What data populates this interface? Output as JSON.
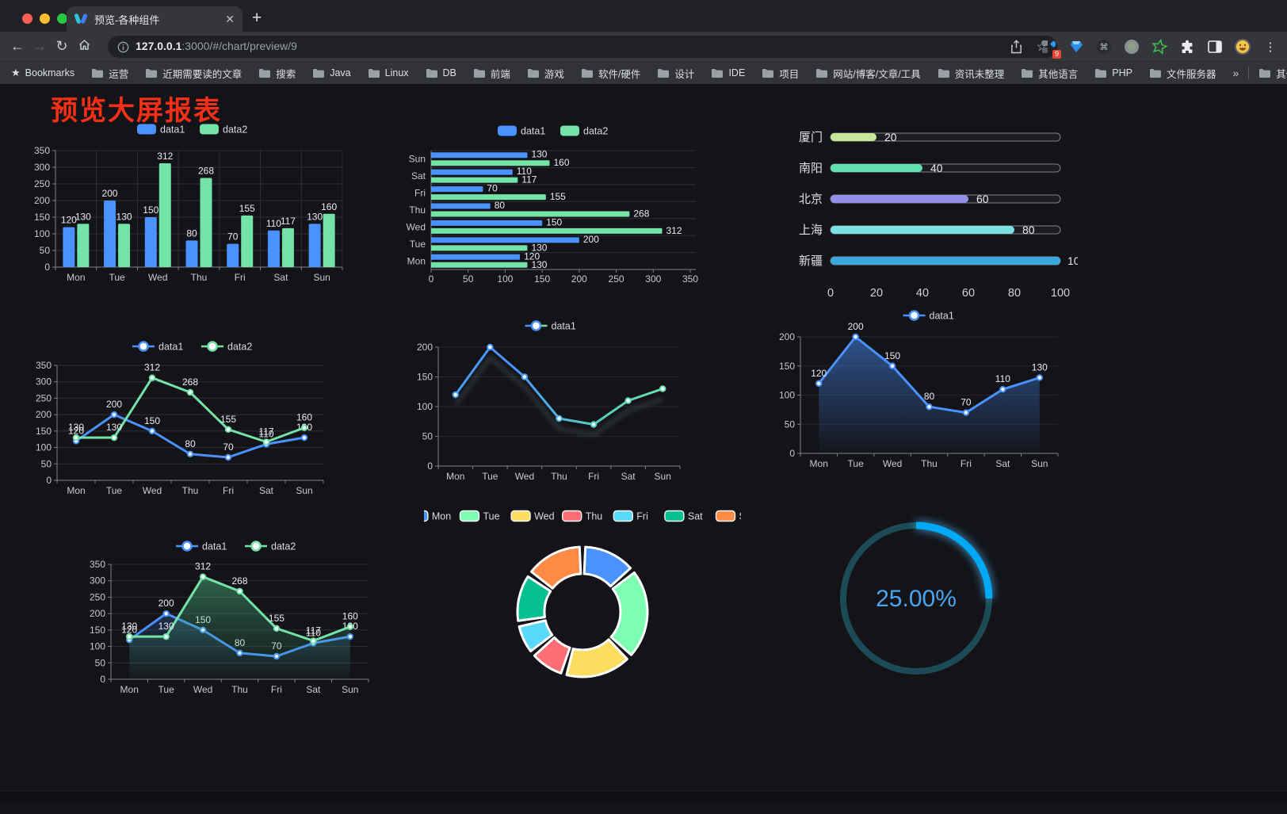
{
  "window": {
    "tab_title": "预览-各种组件",
    "close_glyph": "✕",
    "new_tab_glyph": "+",
    "back_glyph": "←",
    "forward_glyph": "→",
    "reload_glyph": "↻",
    "url_host": "127.0.0.1",
    "url_rest": ":3000/#/chart/preview/9",
    "star_glyph": "☆",
    "extension_badge": "9",
    "menu_glyph": "⋮"
  },
  "bookmarks": {
    "label": "Bookmarks",
    "star_glyph": "★",
    "items": [
      "运营",
      "近期需要读的文章",
      "搜索",
      "Java",
      "Linux",
      "DB",
      "前端",
      "游戏",
      "软件/硬件",
      "设计",
      "IDE",
      "项目",
      "网站/博客/文章/工具",
      "资讯未整理",
      "其他语言",
      "PHP",
      "文件服务器"
    ],
    "overflow_glyph": "»",
    "other_label": "其他书签"
  },
  "page": {
    "title": "预览大屏报表",
    "title_color": "#f23018"
  },
  "chart_data": [
    {
      "id": "bar-grouped",
      "type": "bar",
      "categories": [
        "Mon",
        "Tue",
        "Wed",
        "Thu",
        "Fri",
        "Sat",
        "Sun"
      ],
      "series": [
        {
          "name": "data1",
          "color": "#4992ff",
          "values": [
            120,
            200,
            150,
            80,
            70,
            110,
            130
          ]
        },
        {
          "name": "data2",
          "color": "#73e3a8",
          "values": [
            130,
            130,
            312,
            268,
            155,
            117,
            160
          ]
        }
      ],
      "ylim": [
        0,
        350
      ],
      "ytick": 50,
      "legend_position": "top",
      "grid": true
    },
    {
      "id": "bar-horizontal",
      "type": "bar",
      "orientation": "horizontal",
      "categories": [
        "Mon",
        "Tue",
        "Wed",
        "Thu",
        "Fri",
        "Sat",
        "Sun"
      ],
      "display_top_to_bottom": [
        "Sun",
        "Sat",
        "Fri",
        "Thu",
        "Wed",
        "Tue",
        "Mon"
      ],
      "series": [
        {
          "name": "data1",
          "color": "#4992ff",
          "values": [
            120,
            200,
            150,
            80,
            70,
            110,
            130
          ]
        },
        {
          "name": "data2",
          "color": "#73e3a8",
          "values": [
            130,
            130,
            312,
            268,
            155,
            117,
            160
          ]
        }
      ],
      "xlim": [
        0,
        350
      ],
      "xtick": 50
    },
    {
      "id": "progress-bars",
      "type": "bar",
      "orientation": "horizontal-progress",
      "xlim": [
        0,
        100
      ],
      "xticks": [
        0,
        20,
        40,
        60,
        80,
        100
      ],
      "items": [
        {
          "label": "厦门",
          "value": 20,
          "color": "#c6e89b"
        },
        {
          "label": "南阳",
          "value": 40,
          "color": "#5fe0ae"
        },
        {
          "label": "北京",
          "value": 60,
          "color": "#938fe8"
        },
        {
          "label": "上海",
          "value": 80,
          "color": "#7cdfe4"
        },
        {
          "label": "新疆",
          "value": 100,
          "color": "#38a8dd"
        }
      ]
    },
    {
      "id": "line-dual",
      "type": "line",
      "categories": [
        "Mon",
        "Tue",
        "Wed",
        "Thu",
        "Fri",
        "Sat",
        "Sun"
      ],
      "series": [
        {
          "name": "data1",
          "color": "#4992ff",
          "values": [
            120,
            200,
            150,
            80,
            70,
            110,
            130
          ]
        },
        {
          "name": "data2",
          "color": "#73e3a8",
          "values": [
            130,
            130,
            312,
            268,
            155,
            117,
            160
          ]
        }
      ],
      "ylim": [
        0,
        350
      ],
      "ytick": 50,
      "labels": true
    },
    {
      "id": "line-gradient",
      "type": "line",
      "categories": [
        "Mon",
        "Tue",
        "Wed",
        "Thu",
        "Fri",
        "Sat",
        "Sun"
      ],
      "series": [
        {
          "name": "data1",
          "gradient": [
            "#4992ff",
            "#73e3a8"
          ],
          "color": "#4992ff",
          "values": [
            120,
            200,
            150,
            80,
            70,
            110,
            130
          ]
        }
      ],
      "ylim": [
        0,
        200
      ],
      "ytick": 50,
      "labels": false
    },
    {
      "id": "line-area",
      "type": "area",
      "categories": [
        "Mon",
        "Tue",
        "Wed",
        "Thu",
        "Fri",
        "Sat",
        "Sun"
      ],
      "series": [
        {
          "name": "data1",
          "color": "#4992ff",
          "values": [
            120,
            200,
            150,
            80,
            70,
            110,
            130
          ]
        }
      ],
      "ylim": [
        0,
        200
      ],
      "ytick": 50,
      "labels": true
    },
    {
      "id": "line-area-dual",
      "type": "area",
      "categories": [
        "Mon",
        "Tue",
        "Wed",
        "Thu",
        "Fri",
        "Sat",
        "Sun"
      ],
      "series": [
        {
          "name": "data1",
          "color": "#4992ff",
          "values": [
            120,
            200,
            150,
            80,
            70,
            110,
            130
          ]
        },
        {
          "name": "data2",
          "color": "#73e3a8",
          "values": [
            130,
            130,
            312,
            268,
            155,
            117,
            160
          ]
        }
      ],
      "ylim": [
        0,
        350
      ],
      "ytick": 50,
      "labels": true
    },
    {
      "id": "donut",
      "type": "pie",
      "categories": [
        "Mon",
        "Tue",
        "Wed",
        "Thu",
        "Fri",
        "Sat",
        "Sun"
      ],
      "values": [
        120,
        200,
        150,
        80,
        70,
        110,
        130
      ],
      "colors": [
        "#4992ff",
        "#7cffb2",
        "#fddd60",
        "#ff6e76",
        "#58d9f9",
        "#05c091",
        "#ff8a45"
      ],
      "inner_radius_ratio": 0.58
    },
    {
      "id": "gauge",
      "type": "gauge",
      "value": 25,
      "max": 100,
      "label": "25.00%",
      "color": "#00a9f5",
      "track_color": "#1d4a57",
      "text_color": "#4aa6f0"
    }
  ]
}
